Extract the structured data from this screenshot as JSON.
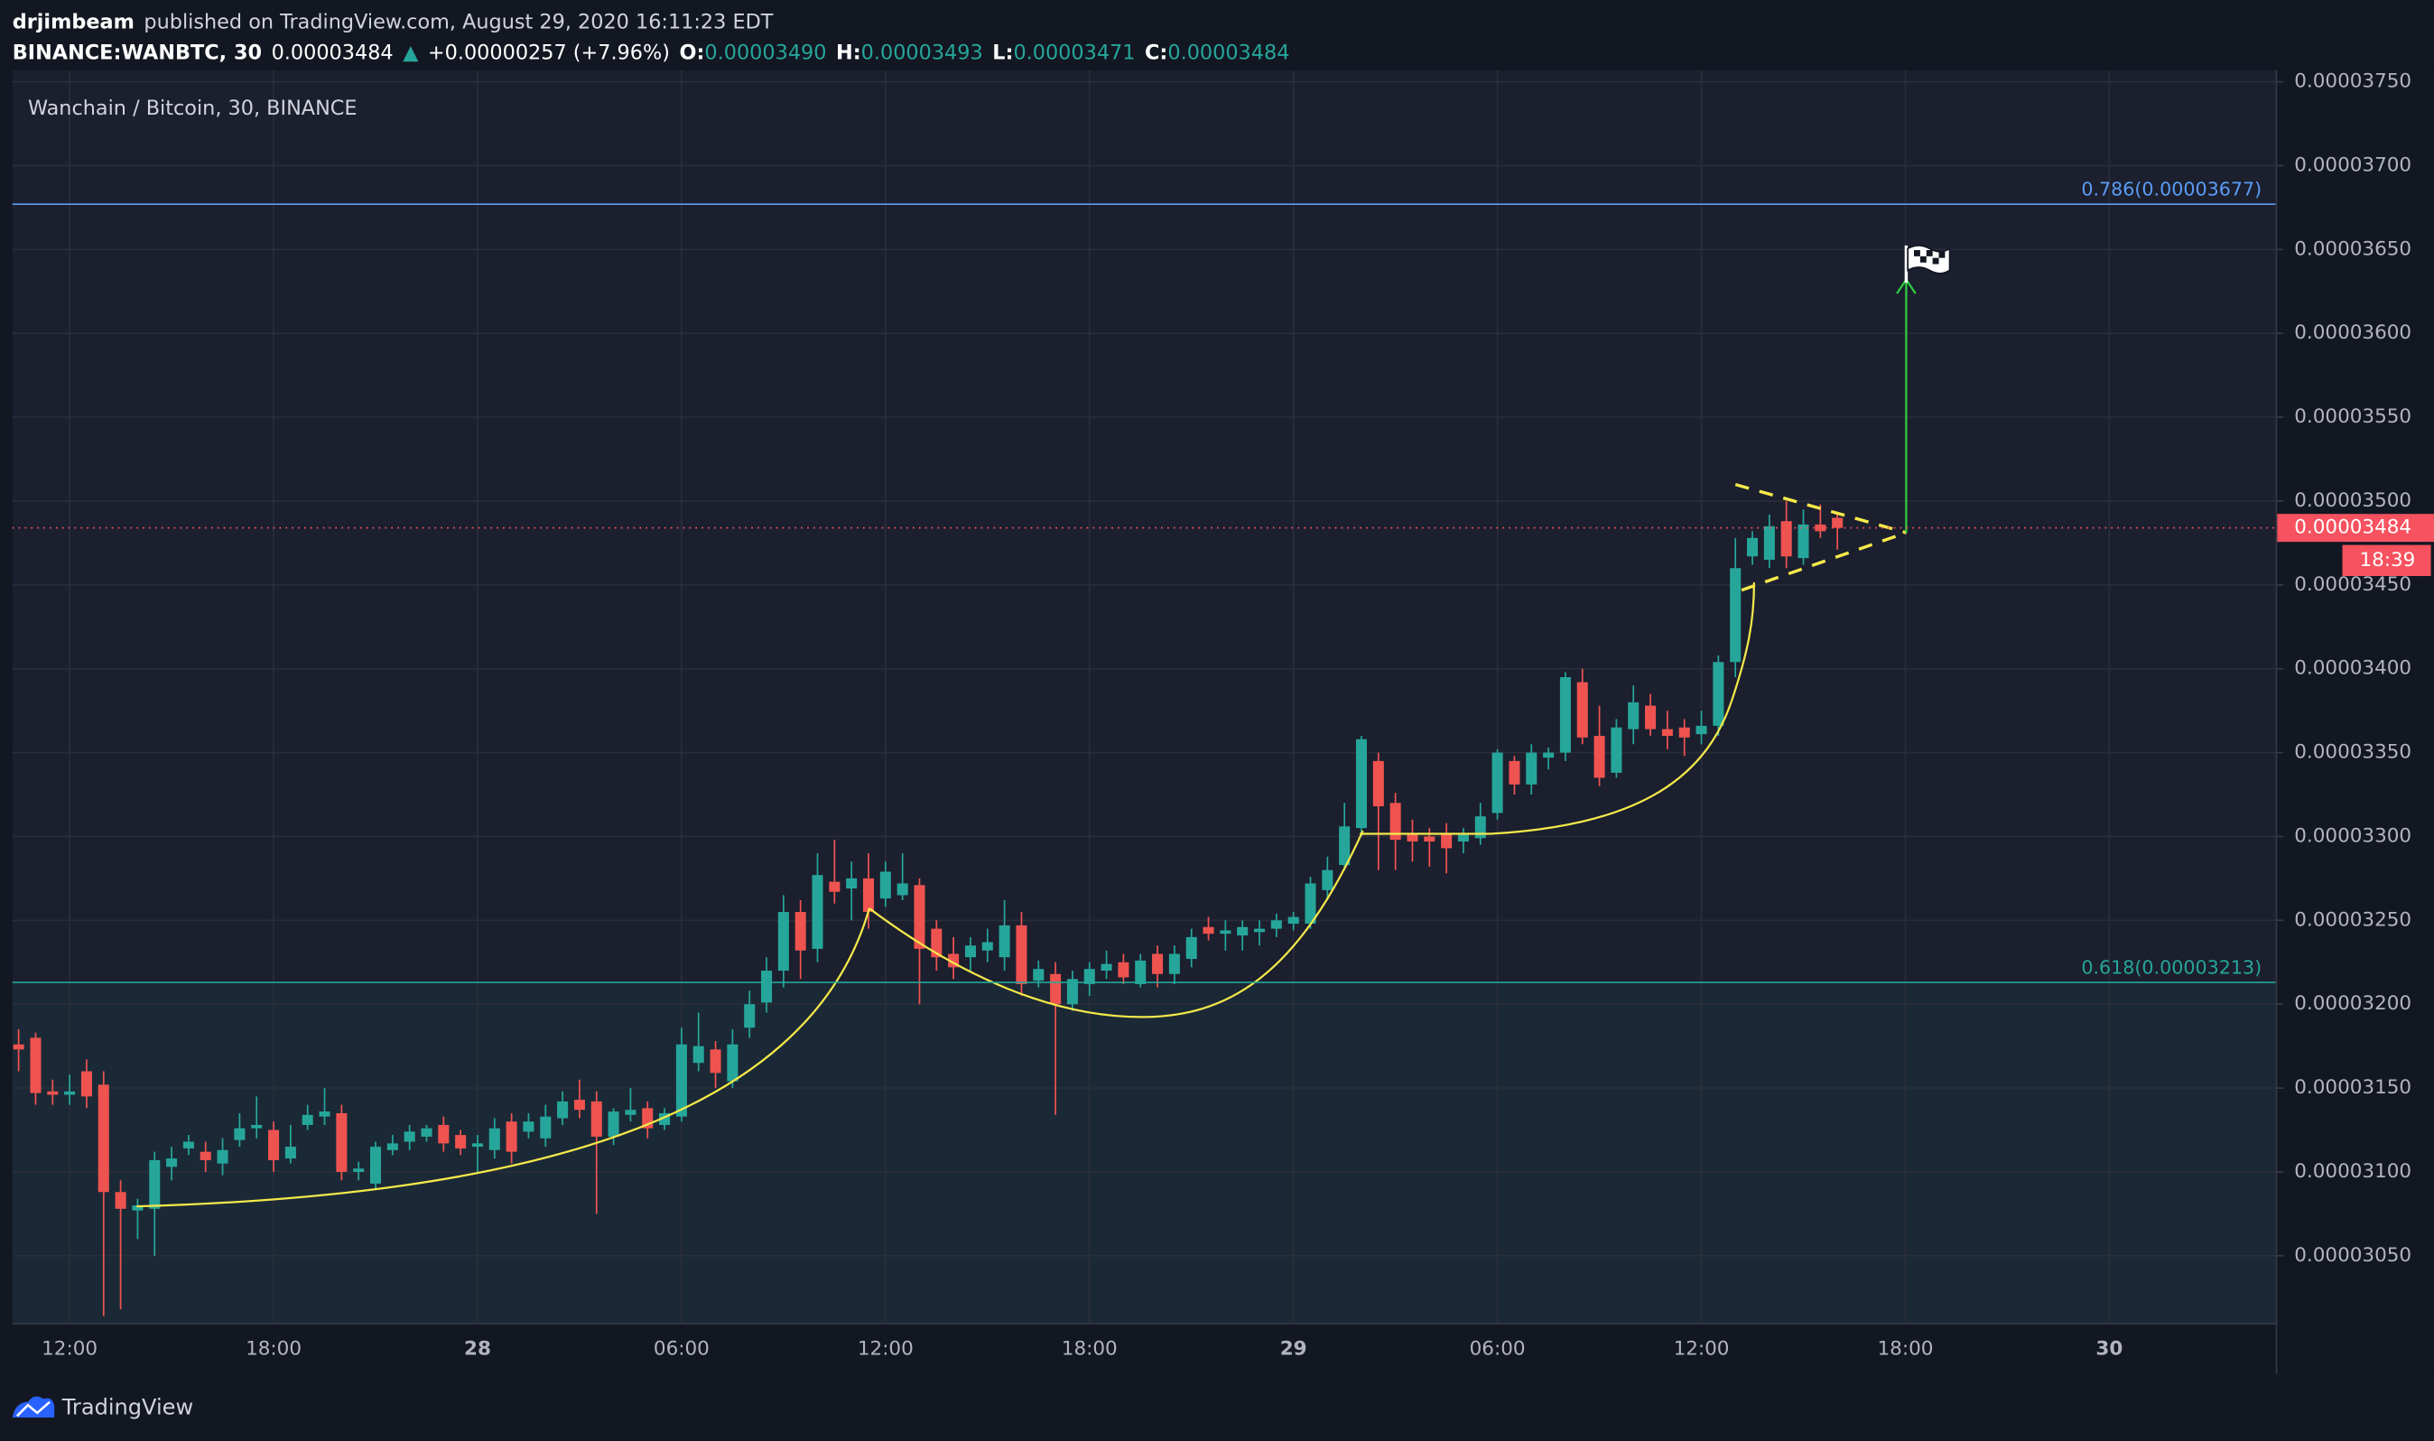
{
  "header": {
    "author": "drjimbeam",
    "published": "published on TradingView.com, August 29, 2020 16:11:23 EDT",
    "symbol": "BINANCE:WANBTC, 30",
    "last": "0.00003484",
    "arrow": "▲",
    "change": "+0.00000257 (+7.96%)",
    "open_label": "O:",
    "open": "0.00003490",
    "high_label": "H:",
    "high": "0.00003493",
    "low_label": "L:",
    "low": "0.00003471",
    "close_label": "C:",
    "close": "0.00003484"
  },
  "chart_data": {
    "type": "candlestick",
    "title": "Wanchain / Bitcoin, 30, BINANCE",
    "up_color": "#26a69a",
    "down_color": "#ef5350",
    "grid": true,
    "x": [
      "10:30",
      "11:00",
      "11:30",
      "12:00",
      "12:30",
      "13:00",
      "13:30",
      "14:00",
      "14:30",
      "15:00",
      "15:30",
      "16:00",
      "16:30",
      "17:00",
      "17:30",
      "18:00",
      "18:30",
      "19:00",
      "19:30",
      "20:00",
      "20:30",
      "21:00",
      "21:30",
      "22:00",
      "22:30",
      "23:00",
      "23:30",
      "00:00",
      "00:30",
      "01:00",
      "01:30",
      "02:00",
      "02:30",
      "03:00",
      "03:30",
      "04:00",
      "04:30",
      "05:00",
      "05:30",
      "06:00",
      "06:30",
      "07:00",
      "07:30",
      "08:00",
      "08:30",
      "09:00",
      "09:30",
      "10:00",
      "10:30",
      "11:00",
      "11:30",
      "12:00",
      "12:30",
      "13:00",
      "13:30",
      "14:00",
      "14:30",
      "15:00",
      "15:30",
      "16:00",
      "16:30",
      "17:00",
      "17:30",
      "18:00",
      "18:30",
      "19:00",
      "19:30",
      "20:00",
      "20:30",
      "21:00",
      "21:30",
      "22:00",
      "22:30",
      "23:00",
      "23:30",
      "00:00",
      "00:30",
      "01:00",
      "01:30",
      "02:00",
      "02:30",
      "03:00",
      "03:30",
      "04:00",
      "04:30",
      "05:00",
      "05:30",
      "06:00",
      "06:30",
      "07:00",
      "07:30",
      "08:00",
      "08:30",
      "09:00",
      "09:30",
      "10:00",
      "10:30",
      "11:00",
      "11:30",
      "12:00",
      "12:30",
      "13:00",
      "13:30",
      "14:00",
      "14:30",
      "15:00",
      "15:30",
      "16:00"
    ],
    "open": [
      3.176e-05,
      3.18e-05,
      3.148e-05,
      3.146e-05,
      3.16e-05,
      3.152e-05,
      3.088e-05,
      3.077e-05,
      3.078e-05,
      3.103e-05,
      3.114e-05,
      3.112e-05,
      3.105e-05,
      3.119e-05,
      3.126e-05,
      3.125e-05,
      3.108e-05,
      3.128e-05,
      3.133e-05,
      3.135e-05,
      3.1e-05,
      3.093e-05,
      3.113e-05,
      3.118e-05,
      3.121e-05,
      3.128e-05,
      3.122e-05,
      3.115e-05,
      3.113e-05,
      3.13e-05,
      3.124e-05,
      3.12e-05,
      3.132e-05,
      3.143e-05,
      3.142e-05,
      3.121e-05,
      3.134e-05,
      3.138e-05,
      3.128e-05,
      3.133e-05,
      3.165e-05,
      3.173e-05,
      3.154e-05,
      3.186e-05,
      3.201e-05,
      3.22e-05,
      3.255e-05,
      3.233e-05,
      3.273e-05,
      3.269e-05,
      3.275e-05,
      3.263e-05,
      3.265e-05,
      3.271e-05,
      3.245e-05,
      3.23e-05,
      3.228e-05,
      3.232e-05,
      3.228e-05,
      3.247e-05,
      3.214e-05,
      3.218e-05,
      3.2e-05,
      3.212e-05,
      3.22e-05,
      3.225e-05,
      3.212e-05,
      3.23e-05,
      3.218e-05,
      3.227e-05,
      3.246e-05,
      3.242e-05,
      3.241e-05,
      3.243e-05,
      3.245e-05,
      3.248e-05,
      3.248e-05,
      3.268e-05,
      3.283e-05,
      3.305e-05,
      3.345e-05,
      3.32e-05,
      3.302e-05,
      3.3e-05,
      3.302e-05,
      3.297e-05,
      3.299e-05,
      3.314e-05,
      3.345e-05,
      3.331e-05,
      3.347e-05,
      3.35e-05,
      3.392e-05,
      3.36e-05,
      3.338e-05,
      3.364e-05,
      3.378e-05,
      3.364e-05,
      3.365e-05,
      3.361e-05,
      3.366e-05,
      3.404e-05,
      3.467e-05,
      3.465e-05,
      3.488e-05,
      3.466e-05,
      3.486e-05,
      3.49e-05
    ],
    "high": [
      3.185e-05,
      3.183e-05,
      3.155e-05,
      3.158e-05,
      3.167e-05,
      3.16e-05,
      3.095e-05,
      3.084e-05,
      3.112e-05,
      3.115e-05,
      3.122e-05,
      3.118e-05,
      3.12e-05,
      3.135e-05,
      3.145e-05,
      3.13e-05,
      3.128e-05,
      3.14e-05,
      3.15e-05,
      3.14e-05,
      3.106e-05,
      3.118e-05,
      3.122e-05,
      3.128e-05,
      3.128e-05,
      3.133e-05,
      3.125e-05,
      3.122e-05,
      3.132e-05,
      3.135e-05,
      3.135e-05,
      3.14e-05,
      3.148e-05,
      3.155e-05,
      3.148e-05,
      3.138e-05,
      3.15e-05,
      3.142e-05,
      3.138e-05,
      3.186e-05,
      3.195e-05,
      3.178e-05,
      3.185e-05,
      3.208e-05,
      3.228e-05,
      3.265e-05,
      3.262e-05,
      3.29e-05,
      3.298e-05,
      3.285e-05,
      3.29e-05,
      3.285e-05,
      3.29e-05,
      3.275e-05,
      3.25e-05,
      3.24e-05,
      3.24e-05,
      3.245e-05,
      3.262e-05,
      3.255e-05,
      3.226e-05,
      3.225e-05,
      3.22e-05,
      3.225e-05,
      3.232e-05,
      3.23e-05,
      3.23e-05,
      3.235e-05,
      3.235e-05,
      3.245e-05,
      3.252e-05,
      3.25e-05,
      3.25e-05,
      3.25e-05,
      3.254e-05,
      3.255e-05,
      3.276e-05,
      3.288e-05,
      3.32e-05,
      3.36e-05,
      3.35e-05,
      3.326e-05,
      3.31e-05,
      3.305e-05,
      3.308e-05,
      3.305e-05,
      3.32e-05,
      3.352e-05,
      3.348e-05,
      3.355e-05,
      3.353e-05,
      3.398e-05,
      3.4e-05,
      3.378e-05,
      3.37e-05,
      3.39e-05,
      3.385e-05,
      3.375e-05,
      3.37e-05,
      3.375e-05,
      3.408e-05,
      3.478e-05,
      3.482e-05,
      3.492e-05,
      3.5e-05,
      3.495e-05,
      3.498e-05,
      3.493e-05
    ],
    "low": [
      3.16e-05,
      3.14e-05,
      3.14e-05,
      3.14e-05,
      3.138e-05,
      3.014e-05,
      3.018e-05,
      3.06e-05,
      3.05e-05,
      3.095e-05,
      3.11e-05,
      3.1e-05,
      3.098e-05,
      3.115e-05,
      3.12e-05,
      3.1e-05,
      3.105e-05,
      3.125e-05,
      3.128e-05,
      3.095e-05,
      3.095e-05,
      3.09e-05,
      3.11e-05,
      3.113e-05,
      3.118e-05,
      3.112e-05,
      3.11e-05,
      3.1e-05,
      3.108e-05,
      3.105e-05,
      3.12e-05,
      3.115e-05,
      3.128e-05,
      3.132e-05,
      3.075e-05,
      3.116e-05,
      3.13e-05,
      3.12e-05,
      3.125e-05,
      3.13e-05,
      3.16e-05,
      3.15e-05,
      3.15e-05,
      3.18e-05,
      3.195e-05,
      3.21e-05,
      3.215e-05,
      3.225e-05,
      3.26e-05,
      3.25e-05,
      3.245e-05,
      3.258e-05,
      3.262e-05,
      3.2e-05,
      3.22e-05,
      3.215e-05,
      3.22e-05,
      3.225e-05,
      3.22e-05,
      3.205e-05,
      3.21e-05,
      3.134e-05,
      3.196e-05,
      3.205e-05,
      3.215e-05,
      3.212e-05,
      3.21e-05,
      3.21e-05,
      3.212e-05,
      3.222e-05,
      3.238e-05,
      3.232e-05,
      3.232e-05,
      3.235e-05,
      3.24e-05,
      3.244e-05,
      3.245e-05,
      3.262e-05,
      3.28e-05,
      3.3e-05,
      3.28e-05,
      3.28e-05,
      3.285e-05,
      3.282e-05,
      3.278e-05,
      3.29e-05,
      3.295e-05,
      3.31e-05,
      3.325e-05,
      3.325e-05,
      3.34e-05,
      3.345e-05,
      3.355e-05,
      3.33e-05,
      3.335e-05,
      3.355e-05,
      3.36e-05,
      3.352e-05,
      3.348e-05,
      3.355e-05,
      3.36e-05,
      3.395e-05,
      3.462e-05,
      3.46e-05,
      3.46e-05,
      3.462e-05,
      3.478e-05,
      3.471e-05
    ],
    "close": [
      3.173e-05,
      3.147e-05,
      3.146e-05,
      3.148e-05,
      3.145e-05,
      3.088e-05,
      3.078e-05,
      3.08e-05,
      3.107e-05,
      3.108e-05,
      3.118e-05,
      3.107e-05,
      3.113e-05,
      3.126e-05,
      3.128e-05,
      3.107e-05,
      3.115e-05,
      3.134e-05,
      3.136e-05,
      3.1e-05,
      3.102e-05,
      3.115e-05,
      3.117e-05,
      3.124e-05,
      3.126e-05,
      3.117e-05,
      3.114e-05,
      3.117e-05,
      3.126e-05,
      3.112e-05,
      3.13e-05,
      3.133e-05,
      3.142e-05,
      3.137e-05,
      3.121e-05,
      3.136e-05,
      3.137e-05,
      3.126e-05,
      3.135e-05,
      3.176e-05,
      3.175e-05,
      3.159e-05,
      3.176e-05,
      3.2e-05,
      3.22e-05,
      3.255e-05,
      3.232e-05,
      3.277e-05,
      3.267e-05,
      3.275e-05,
      3.255e-05,
      3.279e-05,
      3.272e-05,
      3.233e-05,
      3.228e-05,
      3.222e-05,
      3.235e-05,
      3.237e-05,
      3.247e-05,
      3.212e-05,
      3.221e-05,
      3.2e-05,
      3.215e-05,
      3.221e-05,
      3.224e-05,
      3.216e-05,
      3.226e-05,
      3.218e-05,
      3.23e-05,
      3.24e-05,
      3.242e-05,
      3.244e-05,
      3.246e-05,
      3.245e-05,
      3.25e-05,
      3.252e-05,
      3.272e-05,
      3.28e-05,
      3.306e-05,
      3.358e-05,
      3.318e-05,
      3.298e-05,
      3.297e-05,
      3.297e-05,
      3.293e-05,
      3.301e-05,
      3.312e-05,
      3.35e-05,
      3.331e-05,
      3.35e-05,
      3.35e-05,
      3.395e-05,
      3.359e-05,
      3.335e-05,
      3.365e-05,
      3.38e-05,
      3.364e-05,
      3.36e-05,
      3.359e-05,
      3.366e-05,
      3.404e-05,
      3.46e-05,
      3.478e-05,
      3.485e-05,
      3.467e-05,
      3.486e-05,
      3.482e-05,
      3.484e-05
    ],
    "ylim": [
      3.01e-05,
      3.757e-05
    ],
    "yticks": [
      {
        "value": 3.05e-05,
        "label": "0.00003050"
      },
      {
        "value": 3.1e-05,
        "label": "0.00003100"
      },
      {
        "value": 3.15e-05,
        "label": "0.00003150"
      },
      {
        "value": 3.2e-05,
        "label": "0.00003200"
      },
      {
        "value": 3.25e-05,
        "label": "0.00003250"
      },
      {
        "value": 3.3e-05,
        "label": "0.00003300"
      },
      {
        "value": 3.35e-05,
        "label": "0.00003350"
      },
      {
        "value": 3.4e-05,
        "label": "0.00003400"
      },
      {
        "value": 3.45e-05,
        "label": "0.00003450"
      },
      {
        "value": 3.5e-05,
        "label": "0.00003500"
      },
      {
        "value": 3.55e-05,
        "label": "0.00003550"
      },
      {
        "value": 3.6e-05,
        "label": "0.00003600"
      },
      {
        "value": 3.65e-05,
        "label": "0.00003650"
      },
      {
        "value": 3.7e-05,
        "label": "0.00003700"
      },
      {
        "value": 3.75e-05,
        "label": "0.00003750"
      }
    ],
    "xticks": [
      "12:00",
      "18:00",
      {
        "value": "00:00",
        "label": "28"
      },
      "06:00",
      "12:00",
      "18:00",
      {
        "value": "00:00",
        "label": "29"
      },
      "06:00",
      "12:00",
      "18:00",
      {
        "value": "00:00",
        "label": "30"
      }
    ],
    "fib_levels": [
      {
        "value": 3.677e-05,
        "label": "0.786(0.00003677)",
        "color": "#5b9cf6"
      },
      {
        "value": 3.213e-05,
        "label": "0.618(0.00003213)",
        "color": "#26a69a"
      }
    ],
    "last_price": 3.484e-05,
    "last_price_color": "#f7525f",
    "countdown": "18:39"
  },
  "footer": {
    "brand": "TradingView"
  }
}
